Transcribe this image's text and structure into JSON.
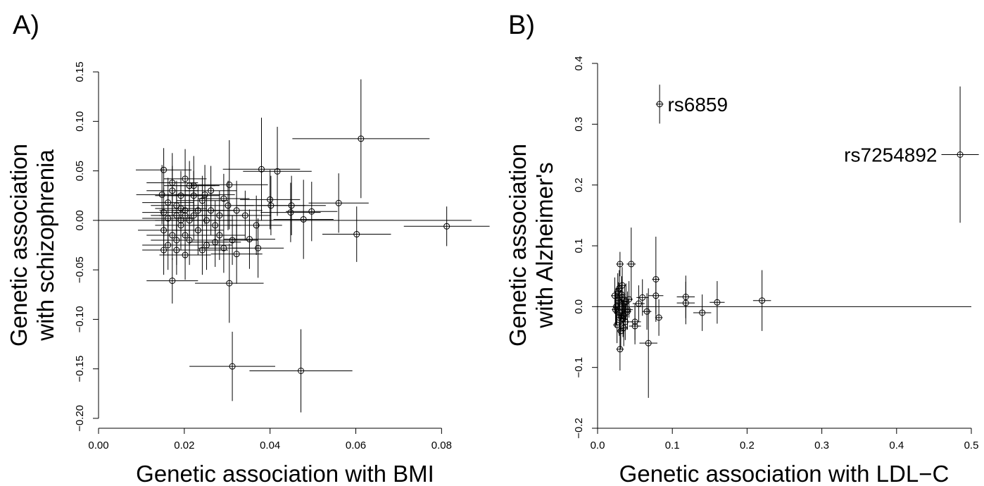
{
  "figure": {
    "panel_labels": [
      "A)",
      "B)"
    ]
  },
  "chart_data": [
    {
      "type": "scatter",
      "panel": "A)",
      "xlabel": "Genetic association with BMI",
      "ylabel": [
        "Genetic association",
        "with schizophrenia"
      ],
      "xlim": [
        0.0,
        0.087
      ],
      "ylim": [
        -0.21,
        0.16
      ],
      "xticks": [
        0.0,
        0.02,
        0.04,
        0.06,
        0.08
      ],
      "xtick_labels": [
        "0.00",
        "0.02",
        "0.04",
        "0.06",
        "0.08"
      ],
      "yticks": [
        -0.2,
        -0.15,
        -0.1,
        -0.05,
        0.0,
        0.05,
        0.1,
        0.15
      ],
      "ytick_labels": [
        "−0.20",
        "−0.15",
        "−0.10",
        "−0.05",
        "0.00",
        "0.05",
        "0.10",
        "0.15"
      ],
      "reference_line_y": 0,
      "grid": false,
      "legend": "none",
      "point_columns": [
        "x",
        "y",
        "x_err",
        "y_err"
      ],
      "points": [
        [
          0.0612,
          0.0825,
          0.016,
          0.06
        ],
        [
          0.038,
          0.0517,
          0.009,
          0.052
        ],
        [
          0.0417,
          0.0495,
          0.008,
          0.045
        ],
        [
          0.0305,
          0.036,
          0.009,
          0.045
        ],
        [
          0.0152,
          0.051,
          0.0065,
          0.022
        ],
        [
          0.0202,
          0.042,
          0.005,
          0.03
        ],
        [
          0.0172,
          0.038,
          0.006,
          0.03
        ],
        [
          0.0222,
          0.035,
          0.006,
          0.03
        ],
        [
          0.04,
          0.021,
          0.007,
          0.03
        ],
        [
          0.056,
          0.0175,
          0.007,
          0.03
        ],
        [
          0.045,
          0.015,
          0.008,
          0.03
        ],
        [
          0.0402,
          0.015,
          0.008,
          0.03
        ],
        [
          0.0248,
          0.026,
          0.007,
          0.03
        ],
        [
          0.0148,
          0.026,
          0.006,
          0.03
        ],
        [
          0.0322,
          0.01,
          0.006,
          0.03
        ],
        [
          0.0497,
          0.009,
          0.006,
          0.03
        ],
        [
          0.0448,
          0.008,
          0.007,
          0.03
        ],
        [
          0.0478,
          0.001,
          0.007,
          0.04
        ],
        [
          0.0812,
          -0.006,
          0.01,
          0.02
        ],
        [
          0.0602,
          -0.014,
          0.008,
          0.028
        ],
        [
          0.0152,
          -0.03,
          0.005,
          0.025
        ],
        [
          0.0172,
          -0.061,
          0.006,
          0.023
        ],
        [
          0.0305,
          -0.0635,
          0.008,
          0.04
        ],
        [
          0.0372,
          -0.028,
          0.006,
          0.03
        ],
        [
          0.0352,
          -0.019,
          0.006,
          0.03
        ],
        [
          0.0368,
          -0.005,
          0.006,
          0.03
        ],
        [
          0.0322,
          -0.034,
          0.006,
          0.03
        ],
        [
          0.0312,
          -0.1475,
          0.01,
          0.035
        ],
        [
          0.0472,
          -0.152,
          0.012,
          0.042
        ],
        [
          0.0152,
          0.008,
          0.005,
          0.025
        ],
        [
          0.0162,
          0.002,
          0.006,
          0.025
        ],
        [
          0.0182,
          0.015,
          0.006,
          0.025
        ],
        [
          0.0192,
          -0.005,
          0.006,
          0.025
        ],
        [
          0.0202,
          0.01,
          0.006,
          0.025
        ],
        [
          0.0212,
          -0.02,
          0.006,
          0.025
        ],
        [
          0.0222,
          0.005,
          0.006,
          0.025
        ],
        [
          0.0232,
          -0.01,
          0.006,
          0.025
        ],
        [
          0.0242,
          0.02,
          0.006,
          0.025
        ],
        [
          0.0252,
          -0.025,
          0.006,
          0.025
        ],
        [
          0.0172,
          -0.015,
          0.006,
          0.025
        ],
        [
          0.0182,
          -0.03,
          0.006,
          0.025
        ],
        [
          0.0192,
          0.025,
          0.006,
          0.025
        ],
        [
          0.0202,
          -0.035,
          0.006,
          0.025
        ],
        [
          0.0212,
          0.0,
          0.006,
          0.025
        ],
        [
          0.0262,
          0.01,
          0.006,
          0.025
        ],
        [
          0.0272,
          -0.005,
          0.006,
          0.025
        ],
        [
          0.0282,
          0.005,
          0.006,
          0.025
        ],
        [
          0.0292,
          -0.028,
          0.006,
          0.025
        ],
        [
          0.0302,
          0.015,
          0.006,
          0.025
        ],
        [
          0.0312,
          -0.02,
          0.006,
          0.025
        ],
        [
          0.0282,
          -0.015,
          0.006,
          0.025
        ],
        [
          0.0262,
          0.03,
          0.006,
          0.025
        ],
        [
          0.0162,
          -0.025,
          0.006,
          0.025
        ],
        [
          0.0152,
          -0.01,
          0.006,
          0.025
        ],
        [
          0.0182,
          0.005,
          0.006,
          0.025
        ],
        [
          0.0192,
          0.0,
          0.006,
          0.025
        ],
        [
          0.0202,
          -0.015,
          0.006,
          0.025
        ],
        [
          0.0222,
          0.025,
          0.006,
          0.025
        ],
        [
          0.0232,
          0.01,
          0.006,
          0.025
        ],
        [
          0.0242,
          -0.03,
          0.006,
          0.025
        ],
        [
          0.0172,
          0.03,
          0.006,
          0.025
        ],
        [
          0.0162,
          0.018,
          0.006,
          0.025
        ],
        [
          0.0212,
          0.035,
          0.006,
          0.025
        ],
        [
          0.0342,
          0.005,
          0.006,
          0.025
        ],
        [
          0.0292,
          0.022,
          0.006,
          0.025
        ],
        [
          0.0272,
          -0.022,
          0.006,
          0.025
        ],
        [
          0.0252,
          0.0,
          0.006,
          0.025
        ],
        [
          0.0182,
          -0.02,
          0.006,
          0.025
        ],
        [
          0.0192,
          0.012,
          0.006,
          0.025
        ],
        [
          0.0202,
          0.005,
          0.006,
          0.025
        ]
      ]
    },
    {
      "type": "scatter",
      "panel": "B)",
      "xlabel": "Genetic association with LDL−C",
      "ylabel": [
        "Genetic association",
        "with Alzheimer's"
      ],
      "xlim": [
        0.0,
        0.5
      ],
      "ylim": [
        -0.2,
        0.4
      ],
      "xticks": [
        0.0,
        0.1,
        0.2,
        0.3,
        0.4,
        0.5
      ],
      "xtick_labels": [
        "0.0",
        "0.1",
        "0.2",
        "0.3",
        "0.4",
        "0.5"
      ],
      "yticks": [
        -0.2,
        -0.1,
        0.0,
        0.1,
        0.2,
        0.3,
        0.4
      ],
      "ytick_labels": [
        "−0.2",
        "−0.1",
        "0.0",
        "0.1",
        "0.2",
        "0.3",
        "0.4"
      ],
      "reference_line_y": 0,
      "grid": false,
      "legend": "none",
      "point_columns": [
        "x",
        "y",
        "x_err",
        "y_err"
      ],
      "labeled_points": [
        {
          "label": "rs6859",
          "x": 0.083,
          "y": 0.333,
          "x_err": 0.005,
          "y_err": 0.032,
          "label_side": "right"
        },
        {
          "label": "rs7254892",
          "x": 0.485,
          "y": 0.25,
          "x_err": 0.025,
          "y_err": 0.112,
          "label_side": "left"
        }
      ],
      "points": [
        [
          0.045,
          0.07,
          0.006,
          0.06
        ],
        [
          0.078,
          0.045,
          0.005,
          0.07
        ],
        [
          0.03,
          0.07,
          0.005,
          0.02
        ],
        [
          0.03,
          -0.07,
          0.005,
          0.035
        ],
        [
          0.068,
          -0.06,
          0.012,
          0.09
        ],
        [
          0.118,
          0.016,
          0.012,
          0.035
        ],
        [
          0.118,
          0.006,
          0.012,
          0.035
        ],
        [
          0.14,
          -0.01,
          0.012,
          0.03
        ],
        [
          0.16,
          0.007,
          0.01,
          0.035
        ],
        [
          0.22,
          0.01,
          0.012,
          0.05
        ],
        [
          0.082,
          -0.018,
          0.005,
          0.03
        ],
        [
          0.078,
          0.018,
          0.01,
          0.03
        ],
        [
          0.06,
          0.015,
          0.008,
          0.03
        ],
        [
          0.066,
          -0.008,
          0.006,
          0.03
        ],
        [
          0.05,
          -0.025,
          0.008,
          0.03
        ],
        [
          0.05,
          -0.032,
          0.008,
          0.03
        ],
        [
          0.055,
          0.005,
          0.008,
          0.03
        ],
        [
          0.04,
          -0.005,
          0.007,
          0.03
        ],
        [
          0.025,
          0.0,
          0.005,
          0.03
        ],
        [
          0.028,
          0.01,
          0.005,
          0.03
        ],
        [
          0.03,
          -0.01,
          0.005,
          0.03
        ],
        [
          0.032,
          0.02,
          0.005,
          0.03
        ],
        [
          0.034,
          -0.02,
          0.005,
          0.03
        ],
        [
          0.036,
          0.005,
          0.005,
          0.03
        ],
        [
          0.026,
          -0.03,
          0.005,
          0.03
        ],
        [
          0.029,
          0.03,
          0.005,
          0.03
        ],
        [
          0.031,
          -0.04,
          0.005,
          0.03
        ],
        [
          0.033,
          0.015,
          0.005,
          0.03
        ],
        [
          0.035,
          -0.015,
          0.005,
          0.03
        ],
        [
          0.027,
          0.025,
          0.005,
          0.03
        ],
        [
          0.038,
          0.008,
          0.005,
          0.03
        ],
        [
          0.04,
          -0.008,
          0.005,
          0.03
        ],
        [
          0.042,
          0.012,
          0.005,
          0.03
        ],
        [
          0.024,
          -0.005,
          0.005,
          0.03
        ],
        [
          0.023,
          0.018,
          0.005,
          0.03
        ],
        [
          0.037,
          -0.025,
          0.005,
          0.03
        ],
        [
          0.032,
          0.0,
          0.005,
          0.03
        ],
        [
          0.029,
          -0.018,
          0.005,
          0.03
        ],
        [
          0.033,
          0.035,
          0.005,
          0.03
        ],
        [
          0.035,
          -0.035,
          0.005,
          0.03
        ]
      ]
    }
  ]
}
